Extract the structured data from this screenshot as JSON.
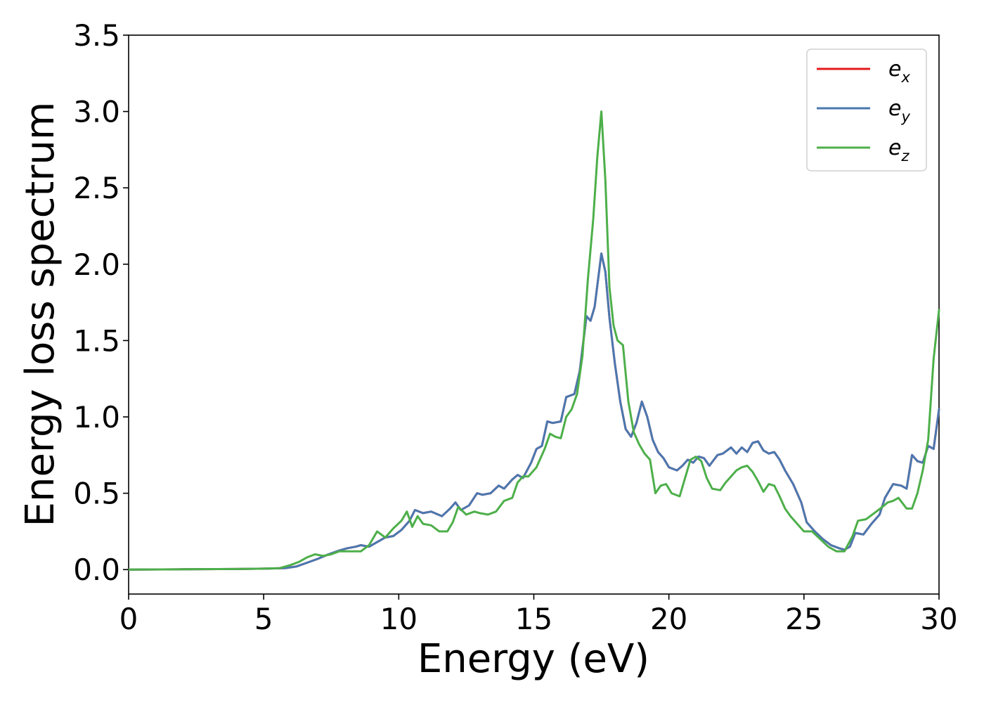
{
  "chart_data": {
    "type": "line",
    "xlabel": "Energy (eV)",
    "ylabel": "Energy loss spectrum",
    "xlim": [
      0,
      30
    ],
    "ylim": [
      -0.16,
      3.5
    ],
    "xticks": [
      0,
      5,
      10,
      15,
      20,
      25,
      30
    ],
    "yticks": [
      0.0,
      0.5,
      1.0,
      1.5,
      2.0,
      2.5,
      3.0,
      3.5
    ],
    "xtick_labels": [
      "0",
      "5",
      "10",
      "15",
      "20",
      "25",
      "30"
    ],
    "ytick_labels": [
      "0.0",
      "0.5",
      "1.0",
      "1.5",
      "2.0",
      "2.5",
      "3.0",
      "3.5"
    ],
    "grid": false,
    "legend_position": "top-right",
    "series": [
      {
        "name": "e_x",
        "label_base": "e",
        "label_sub": "x",
        "color": "#e41a1c",
        "x": [
          0,
          2,
          4,
          5,
          5.8,
          6.2,
          6.6,
          7,
          7.4,
          7.8,
          8.1,
          8.4,
          8.6,
          8.9,
          9.2,
          9.5,
          9.8,
          10.1,
          10.4,
          10.6,
          10.9,
          11.2,
          11.6,
          11.9,
          12.1,
          12.3,
          12.6,
          12.9,
          13.1,
          13.4,
          13.7,
          13.9,
          14.2,
          14.4,
          14.6,
          14.9,
          15.1,
          15.3,
          15.5,
          15.7,
          16,
          16.2,
          16.5,
          16.7,
          16.95,
          17.1,
          17.25,
          17.5,
          17.65,
          17.8,
          18,
          18.2,
          18.4,
          18.6,
          18.8,
          19,
          19.2,
          19.4,
          19.6,
          19.8,
          20,
          20.3,
          20.5,
          20.7,
          20.9,
          21.1,
          21.3,
          21.5,
          21.8,
          22,
          22.3,
          22.5,
          22.7,
          22.9,
          23.1,
          23.3,
          23.5,
          23.7,
          23.9,
          24.1,
          24.3,
          24.6,
          24.9,
          25.1,
          25.4,
          25.7,
          26,
          26.3,
          26.5,
          26.7,
          26.9,
          27.2,
          27.5,
          27.8,
          28,
          28.3,
          28.6,
          28.8,
          29,
          29.2,
          29.4,
          29.6,
          29.8,
          30
        ],
        "y": [
          0,
          0.002,
          0.004,
          0.006,
          0.01,
          0.02,
          0.045,
          0.07,
          0.1,
          0.125,
          0.14,
          0.15,
          0.16,
          0.15,
          0.18,
          0.21,
          0.22,
          0.26,
          0.32,
          0.39,
          0.37,
          0.38,
          0.35,
          0.4,
          0.44,
          0.39,
          0.42,
          0.5,
          0.49,
          0.5,
          0.55,
          0.53,
          0.59,
          0.62,
          0.6,
          0.7,
          0.79,
          0.81,
          0.97,
          0.96,
          0.97,
          1.13,
          1.15,
          1.3,
          1.66,
          1.63,
          1.72,
          2.07,
          1.95,
          1.65,
          1.35,
          1.1,
          0.92,
          0.87,
          0.96,
          1.1,
          1.0,
          0.85,
          0.77,
          0.73,
          0.67,
          0.65,
          0.68,
          0.72,
          0.7,
          0.74,
          0.73,
          0.68,
          0.75,
          0.76,
          0.8,
          0.76,
          0.8,
          0.77,
          0.83,
          0.84,
          0.78,
          0.76,
          0.77,
          0.72,
          0.65,
          0.56,
          0.44,
          0.31,
          0.25,
          0.2,
          0.16,
          0.14,
          0.13,
          0.15,
          0.24,
          0.23,
          0.3,
          0.36,
          0.47,
          0.56,
          0.55,
          0.53,
          0.75,
          0.71,
          0.7,
          0.81,
          0.79,
          1.05
        ]
      },
      {
        "name": "e_y",
        "label_base": "e",
        "label_sub": "y",
        "color": "#4a78b0",
        "x": [
          0,
          2,
          4,
          5,
          5.8,
          6.2,
          6.6,
          7,
          7.4,
          7.8,
          8.1,
          8.4,
          8.6,
          8.9,
          9.2,
          9.5,
          9.8,
          10.1,
          10.4,
          10.6,
          10.9,
          11.2,
          11.6,
          11.9,
          12.1,
          12.3,
          12.6,
          12.9,
          13.1,
          13.4,
          13.7,
          13.9,
          14.2,
          14.4,
          14.6,
          14.9,
          15.1,
          15.3,
          15.5,
          15.7,
          16,
          16.2,
          16.5,
          16.7,
          16.95,
          17.1,
          17.25,
          17.5,
          17.65,
          17.8,
          18,
          18.2,
          18.4,
          18.6,
          18.8,
          19,
          19.2,
          19.4,
          19.6,
          19.8,
          20,
          20.3,
          20.5,
          20.7,
          20.9,
          21.1,
          21.3,
          21.5,
          21.8,
          22,
          22.3,
          22.5,
          22.7,
          22.9,
          23.1,
          23.3,
          23.5,
          23.7,
          23.9,
          24.1,
          24.3,
          24.6,
          24.9,
          25.1,
          25.4,
          25.7,
          26,
          26.3,
          26.5,
          26.7,
          26.9,
          27.2,
          27.5,
          27.8,
          28,
          28.3,
          28.6,
          28.8,
          29,
          29.2,
          29.4,
          29.6,
          29.8,
          30
        ],
        "y": [
          0,
          0.002,
          0.004,
          0.006,
          0.01,
          0.02,
          0.045,
          0.07,
          0.1,
          0.125,
          0.14,
          0.15,
          0.16,
          0.15,
          0.18,
          0.21,
          0.22,
          0.26,
          0.32,
          0.39,
          0.37,
          0.38,
          0.35,
          0.4,
          0.44,
          0.39,
          0.42,
          0.5,
          0.49,
          0.5,
          0.55,
          0.53,
          0.59,
          0.62,
          0.6,
          0.7,
          0.79,
          0.81,
          0.97,
          0.96,
          0.97,
          1.13,
          1.15,
          1.3,
          1.66,
          1.63,
          1.72,
          2.07,
          1.95,
          1.65,
          1.35,
          1.1,
          0.92,
          0.87,
          0.96,
          1.1,
          1.0,
          0.85,
          0.77,
          0.73,
          0.67,
          0.65,
          0.68,
          0.72,
          0.7,
          0.74,
          0.73,
          0.68,
          0.75,
          0.76,
          0.8,
          0.76,
          0.8,
          0.77,
          0.83,
          0.84,
          0.78,
          0.76,
          0.77,
          0.72,
          0.65,
          0.56,
          0.44,
          0.31,
          0.25,
          0.2,
          0.16,
          0.14,
          0.13,
          0.15,
          0.24,
          0.23,
          0.3,
          0.36,
          0.47,
          0.56,
          0.55,
          0.53,
          0.75,
          0.71,
          0.7,
          0.81,
          0.79,
          1.05
        ]
      },
      {
        "name": "e_z",
        "label_base": "e",
        "label_sub": "z",
        "color": "#4daf4a",
        "x": [
          0,
          2,
          4,
          5,
          5.6,
          6,
          6.3,
          6.6,
          6.9,
          7.2,
          7.5,
          7.8,
          8.2,
          8.6,
          8.9,
          9.2,
          9.5,
          9.8,
          10.1,
          10.3,
          10.5,
          10.7,
          10.9,
          11.2,
          11.5,
          11.8,
          12,
          12.2,
          12.5,
          12.8,
          13,
          13.3,
          13.6,
          13.9,
          14.2,
          14.4,
          14.6,
          14.8,
          15.1,
          15.4,
          15.6,
          15.8,
          16,
          16.2,
          16.4,
          16.6,
          16.8,
          17,
          17.2,
          17.35,
          17.5,
          17.65,
          17.8,
          17.95,
          18.1,
          18.3,
          18.5,
          18.7,
          18.9,
          19.1,
          19.3,
          19.5,
          19.7,
          19.9,
          20.1,
          20.4,
          20.6,
          20.8,
          21,
          21.2,
          21.4,
          21.6,
          21.9,
          22.1,
          22.3,
          22.5,
          22.7,
          22.9,
          23.1,
          23.3,
          23.5,
          23.7,
          23.9,
          24.1,
          24.3,
          24.5,
          24.8,
          25,
          25.3,
          25.6,
          25.9,
          26.2,
          26.5,
          26.8,
          27,
          27.3,
          27.6,
          27.9,
          28.1,
          28.3,
          28.5,
          28.8,
          29,
          29.2,
          29.4,
          29.6,
          29.8,
          30
        ],
        "y": [
          0,
          0.002,
          0.004,
          0.006,
          0.01,
          0.03,
          0.05,
          0.08,
          0.1,
          0.09,
          0.1,
          0.12,
          0.12,
          0.12,
          0.16,
          0.25,
          0.21,
          0.27,
          0.32,
          0.38,
          0.28,
          0.35,
          0.3,
          0.29,
          0.25,
          0.25,
          0.31,
          0.41,
          0.36,
          0.38,
          0.37,
          0.36,
          0.38,
          0.45,
          0.47,
          0.57,
          0.61,
          0.61,
          0.67,
          0.79,
          0.89,
          0.87,
          0.86,
          1.0,
          1.05,
          1.15,
          1.4,
          1.9,
          2.3,
          2.7,
          3.0,
          2.55,
          1.85,
          1.6,
          1.5,
          1.47,
          1.1,
          0.9,
          0.82,
          0.76,
          0.72,
          0.5,
          0.55,
          0.56,
          0.5,
          0.48,
          0.6,
          0.72,
          0.74,
          0.71,
          0.6,
          0.53,
          0.52,
          0.57,
          0.61,
          0.65,
          0.67,
          0.68,
          0.64,
          0.58,
          0.51,
          0.56,
          0.55,
          0.48,
          0.4,
          0.35,
          0.29,
          0.25,
          0.25,
          0.2,
          0.15,
          0.12,
          0.12,
          0.22,
          0.32,
          0.33,
          0.37,
          0.41,
          0.44,
          0.45,
          0.47,
          0.4,
          0.4,
          0.5,
          0.65,
          0.85,
          1.38,
          1.7
        ]
      }
    ]
  }
}
